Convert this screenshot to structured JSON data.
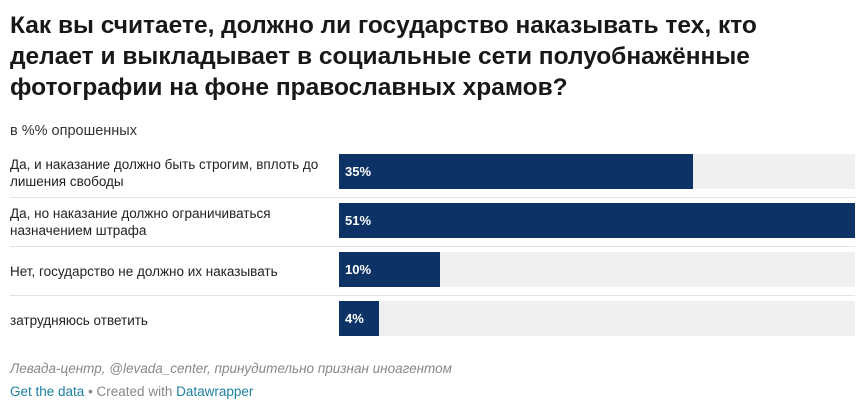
{
  "chart_data": {
    "type": "bar",
    "title": "Как вы считаете, должно ли государство наказывать тех, кто\nделает и выкладывает в социальные сети полуобнажённые\nфотографии на фоне православных храмов?",
    "subtitle": "в %% опрошенных",
    "categories": [
      "Да, и наказание должно быть строгим, вплоть до лишения свободы",
      "Да, но наказание должно ограничиваться назначением штрафа",
      "Нет, государство не должно их наказывать",
      "затрудняюсь ответить"
    ],
    "values": [
      35,
      51,
      10,
      4
    ],
    "value_labels": [
      "35%",
      "51%",
      "10%",
      "4%"
    ],
    "xlim": [
      0,
      51
    ],
    "bar_color": "#0d3366",
    "background_bar_color": "#f0f0f0",
    "grid": false
  },
  "source": "Левада-центр, @levada_center, принудительно признан иноагентом",
  "footer": {
    "get_data": "Get the data",
    "separator": " • Created with ",
    "datawrapper": "Datawrapper"
  }
}
